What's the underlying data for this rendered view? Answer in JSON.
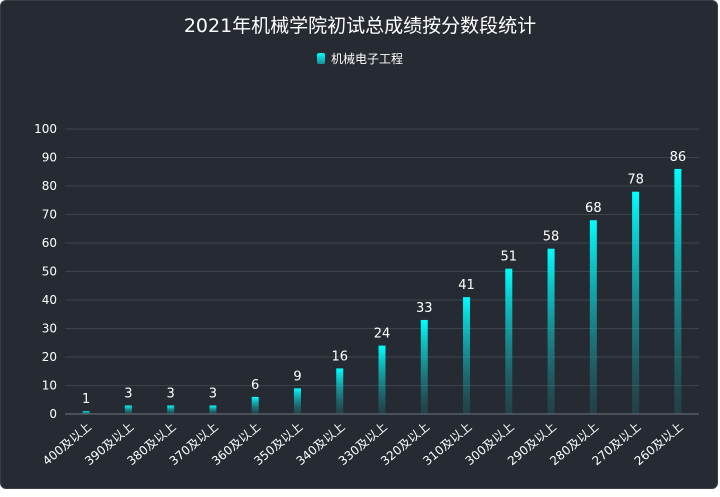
{
  "chart_data": {
    "type": "bar",
    "title": "2021年机械学院初试总成绩按分数段统计",
    "legend": [
      "机械电子工程"
    ],
    "legend_placement": "top-center",
    "categories": [
      "400及以上",
      "390及以上",
      "380及以上",
      "370及以上",
      "360及以上",
      "350及以上",
      "340及以上",
      "330及以上",
      "320及以上",
      "310及以上",
      "300及以上",
      "290及以上",
      "280及以上",
      "270及以上",
      "260及以上"
    ],
    "series": [
      {
        "name": "机械电子工程",
        "values": [
          1,
          3,
          3,
          3,
          6,
          9,
          16,
          24,
          33,
          41,
          51,
          58,
          68,
          78,
          86
        ]
      }
    ],
    "ylim": [
      0,
      100
    ],
    "yticks": [
      0,
      10,
      20,
      30,
      40,
      50,
      60,
      70,
      80,
      90,
      100
    ],
    "grid": true,
    "colors": {
      "bar_top": "#00ffff",
      "bar_bottom": "#1a8f95",
      "grid": "#3d434c",
      "text": "#ffffff"
    }
  }
}
